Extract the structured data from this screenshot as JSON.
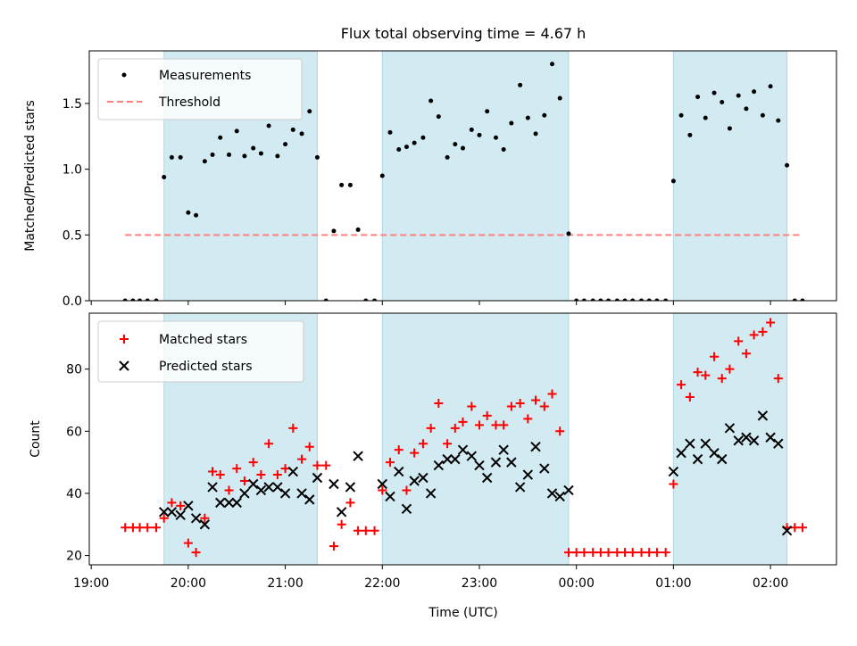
{
  "title": "Flux total observing time = 4.67 h",
  "colors": {
    "band": "#add8e6",
    "measure": "#000000",
    "threshold": "#ff7f7f",
    "matched": "#ff0000",
    "predicted": "#000000"
  },
  "chart_data": [
    {
      "type": "scatter",
      "ylabel": "Matched/Predicted stars",
      "xlim": [
        18.98,
        26.68
      ],
      "ylim": [
        0.0,
        1.9
      ],
      "yticks": [
        0.0,
        0.5,
        1.0,
        1.5
      ],
      "yticklabels": [
        "0.0",
        "0.5",
        "1.0",
        "1.5"
      ],
      "shaded_intervals": [
        [
          19.75,
          21.33
        ],
        [
          22.0,
          23.92
        ],
        [
          25.0,
          26.17
        ]
      ],
      "legend": {
        "position": "top-left",
        "measurements_label": "Measurements",
        "threshold_label": "Threshold"
      },
      "threshold": {
        "value": 0.5,
        "x_range": [
          19.35,
          26.33
        ]
      },
      "series": [
        {
          "name": "Measurements",
          "points": [
            [
              19.35,
              0
            ],
            [
              19.43,
              0
            ],
            [
              19.5,
              0
            ],
            [
              19.58,
              0
            ],
            [
              19.67,
              0
            ],
            [
              19.75,
              0.94
            ],
            [
              19.83,
              1.09
            ],
            [
              19.92,
              1.09
            ],
            [
              20.0,
              0.67
            ],
            [
              20.08,
              0.65
            ],
            [
              20.17,
              1.06
            ],
            [
              20.25,
              1.11
            ],
            [
              20.33,
              1.24
            ],
            [
              20.42,
              1.11
            ],
            [
              20.5,
              1.29
            ],
            [
              20.58,
              1.1
            ],
            [
              20.67,
              1.16
            ],
            [
              20.75,
              1.12
            ],
            [
              20.83,
              1.33
            ],
            [
              20.92,
              1.1
            ],
            [
              21.0,
              1.19
            ],
            [
              21.08,
              1.3
            ],
            [
              21.17,
              1.27
            ],
            [
              21.25,
              1.44
            ],
            [
              21.33,
              1.09
            ],
            [
              21.42,
              0
            ],
            [
              21.5,
              0.53
            ],
            [
              21.58,
              0.88
            ],
            [
              21.67,
              0.88
            ],
            [
              21.75,
              0.54
            ],
            [
              21.83,
              0
            ],
            [
              21.92,
              0
            ],
            [
              22.0,
              0.95
            ],
            [
              22.08,
              1.28
            ],
            [
              22.17,
              1.15
            ],
            [
              22.25,
              1.17
            ],
            [
              22.33,
              1.2
            ],
            [
              22.42,
              1.24
            ],
            [
              22.5,
              1.52
            ],
            [
              22.58,
              1.4
            ],
            [
              22.67,
              1.09
            ],
            [
              22.75,
              1.19
            ],
            [
              22.83,
              1.16
            ],
            [
              22.92,
              1.3
            ],
            [
              23.0,
              1.26
            ],
            [
              23.08,
              1.44
            ],
            [
              23.17,
              1.24
            ],
            [
              23.25,
              1.15
            ],
            [
              23.33,
              1.35
            ],
            [
              23.42,
              1.64
            ],
            [
              23.5,
              1.39
            ],
            [
              23.58,
              1.27
            ],
            [
              23.67,
              1.41
            ],
            [
              23.75,
              1.8
            ],
            [
              23.83,
              1.54
            ],
            [
              23.92,
              0.51
            ],
            [
              24.0,
              0
            ],
            [
              24.08,
              0
            ],
            [
              24.17,
              0
            ],
            [
              24.25,
              0
            ],
            [
              24.33,
              0
            ],
            [
              24.42,
              0
            ],
            [
              24.5,
              0
            ],
            [
              24.58,
              0
            ],
            [
              24.67,
              0
            ],
            [
              24.75,
              0
            ],
            [
              24.83,
              0
            ],
            [
              24.92,
              0
            ],
            [
              25.0,
              0.91
            ],
            [
              25.08,
              1.41
            ],
            [
              25.17,
              1.26
            ],
            [
              25.25,
              1.55
            ],
            [
              25.33,
              1.39
            ],
            [
              25.42,
              1.58
            ],
            [
              25.5,
              1.51
            ],
            [
              25.58,
              1.31
            ],
            [
              25.67,
              1.56
            ],
            [
              25.75,
              1.46
            ],
            [
              25.83,
              1.59
            ],
            [
              25.92,
              1.41
            ],
            [
              26.0,
              1.63
            ],
            [
              26.08,
              1.37
            ],
            [
              26.17,
              1.03
            ],
            [
              26.25,
              0
            ],
            [
              26.33,
              0
            ]
          ]
        }
      ]
    },
    {
      "type": "scatter",
      "ylabel": "Count",
      "xlabel": "Time (UTC)",
      "xlim": [
        18.98,
        26.68
      ],
      "ylim": [
        17,
        98
      ],
      "yticks": [
        20,
        40,
        60,
        80
      ],
      "yticklabels": [
        "20",
        "40",
        "60",
        "80"
      ],
      "xticks": [
        19,
        20,
        21,
        22,
        23,
        24,
        25,
        26
      ],
      "xticklabels": [
        "19:00",
        "20:00",
        "21:00",
        "22:00",
        "23:00",
        "00:00",
        "01:00",
        "02:00"
      ],
      "shaded_intervals": [
        [
          19.75,
          21.33
        ],
        [
          22.0,
          23.92
        ],
        [
          25.0,
          26.17
        ]
      ],
      "legend": {
        "position": "top-left",
        "matched_label": "Matched stars",
        "predicted_label": "Predicted stars"
      },
      "series": [
        {
          "name": "Matched stars",
          "marker": "+",
          "points": [
            [
              19.35,
              29
            ],
            [
              19.43,
              29
            ],
            [
              19.5,
              29
            ],
            [
              19.58,
              29
            ],
            [
              19.67,
              29
            ],
            [
              19.75,
              32
            ],
            [
              19.83,
              37
            ],
            [
              19.92,
              36
            ],
            [
              20.0,
              24
            ],
            [
              20.08,
              21
            ],
            [
              20.17,
              32
            ],
            [
              20.25,
              47
            ],
            [
              20.33,
              46
            ],
            [
              20.42,
              41
            ],
            [
              20.5,
              48
            ],
            [
              20.58,
              44
            ],
            [
              20.67,
              50
            ],
            [
              20.75,
              46
            ],
            [
              20.83,
              56
            ],
            [
              20.92,
              46
            ],
            [
              21.0,
              48
            ],
            [
              21.08,
              61
            ],
            [
              21.17,
              51
            ],
            [
              21.25,
              55
            ],
            [
              21.33,
              49
            ],
            [
              21.42,
              49
            ],
            [
              21.5,
              23
            ],
            [
              21.58,
              30
            ],
            [
              21.67,
              37
            ],
            [
              21.75,
              28
            ],
            [
              21.83,
              28
            ],
            [
              21.92,
              28
            ],
            [
              22.0,
              41
            ],
            [
              22.08,
              50
            ],
            [
              22.17,
              54
            ],
            [
              22.25,
              41
            ],
            [
              22.33,
              53
            ],
            [
              22.42,
              56
            ],
            [
              22.5,
              61
            ],
            [
              22.58,
              69
            ],
            [
              22.67,
              56
            ],
            [
              22.75,
              61
            ],
            [
              22.83,
              63
            ],
            [
              22.92,
              68
            ],
            [
              23.0,
              62
            ],
            [
              23.08,
              65
            ],
            [
              23.17,
              62
            ],
            [
              23.25,
              62
            ],
            [
              23.33,
              68
            ],
            [
              23.42,
              69
            ],
            [
              23.5,
              64
            ],
            [
              23.58,
              70
            ],
            [
              23.67,
              68
            ],
            [
              23.75,
              72
            ],
            [
              23.83,
              60
            ],
            [
              23.92,
              21
            ],
            [
              24.0,
              21
            ],
            [
              24.08,
              21
            ],
            [
              24.17,
              21
            ],
            [
              24.25,
              21
            ],
            [
              24.33,
              21
            ],
            [
              24.42,
              21
            ],
            [
              24.5,
              21
            ],
            [
              24.58,
              21
            ],
            [
              24.67,
              21
            ],
            [
              24.75,
              21
            ],
            [
              24.83,
              21
            ],
            [
              24.92,
              21
            ],
            [
              25.0,
              43
            ],
            [
              25.08,
              75
            ],
            [
              25.17,
              71
            ],
            [
              25.25,
              79
            ],
            [
              25.33,
              78
            ],
            [
              25.42,
              84
            ],
            [
              25.5,
              77
            ],
            [
              25.58,
              80
            ],
            [
              25.67,
              89
            ],
            [
              25.75,
              85
            ],
            [
              25.83,
              91
            ],
            [
              25.92,
              92
            ],
            [
              26.0,
              95
            ],
            [
              26.08,
              77
            ],
            [
              26.17,
              29
            ],
            [
              26.25,
              29
            ],
            [
              26.33,
              29
            ]
          ]
        },
        {
          "name": "Predicted stars",
          "marker": "x",
          "points": [
            [
              19.75,
              34
            ],
            [
              19.83,
              34
            ],
            [
              19.92,
              33
            ],
            [
              20.0,
              36
            ],
            [
              20.08,
              32
            ],
            [
              20.17,
              30
            ],
            [
              20.25,
              42
            ],
            [
              20.33,
              37
            ],
            [
              20.42,
              37
            ],
            [
              20.5,
              37
            ],
            [
              20.58,
              40
            ],
            [
              20.67,
              43
            ],
            [
              20.75,
              41
            ],
            [
              20.83,
              42
            ],
            [
              20.92,
              42
            ],
            [
              21.0,
              40
            ],
            [
              21.08,
              47
            ],
            [
              21.17,
              40
            ],
            [
              21.25,
              38
            ],
            [
              21.33,
              45
            ],
            [
              21.5,
              43
            ],
            [
              21.58,
              34
            ],
            [
              21.67,
              42
            ],
            [
              21.75,
              52
            ],
            [
              22.0,
              43
            ],
            [
              22.08,
              39
            ],
            [
              22.17,
              47
            ],
            [
              22.25,
              35
            ],
            [
              22.33,
              44
            ],
            [
              22.42,
              45
            ],
            [
              22.5,
              40
            ],
            [
              22.58,
              49
            ],
            [
              22.67,
              51
            ],
            [
              22.75,
              51
            ],
            [
              22.83,
              54
            ],
            [
              22.92,
              52
            ],
            [
              23.0,
              49
            ],
            [
              23.08,
              45
            ],
            [
              23.17,
              50
            ],
            [
              23.25,
              54
            ],
            [
              23.33,
              50
            ],
            [
              23.42,
              42
            ],
            [
              23.5,
              46
            ],
            [
              23.58,
              55
            ],
            [
              23.67,
              48
            ],
            [
              23.75,
              40
            ],
            [
              23.83,
              39
            ],
            [
              23.92,
              41
            ],
            [
              25.0,
              47
            ],
            [
              25.08,
              53
            ],
            [
              25.17,
              56
            ],
            [
              25.25,
              51
            ],
            [
              25.33,
              56
            ],
            [
              25.42,
              53
            ],
            [
              25.5,
              51
            ],
            [
              25.58,
              61
            ],
            [
              25.67,
              57
            ],
            [
              25.75,
              58
            ],
            [
              25.83,
              57
            ],
            [
              25.92,
              65
            ],
            [
              26.0,
              58
            ],
            [
              26.08,
              56
            ],
            [
              26.17,
              28
            ]
          ]
        }
      ]
    }
  ]
}
